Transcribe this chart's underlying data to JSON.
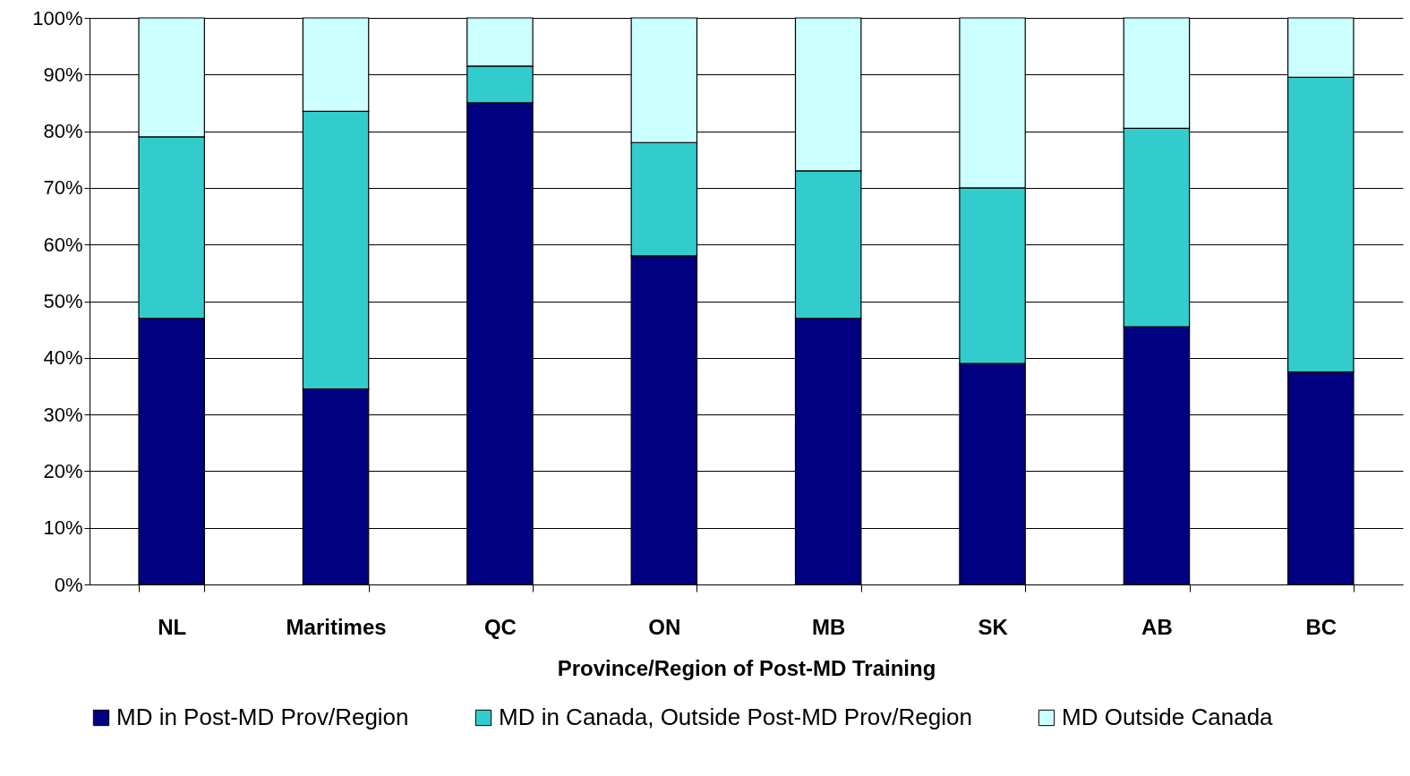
{
  "chart_data": {
    "type": "bar",
    "stacked": true,
    "xlabel": "Province/Region of Post-MD Training",
    "categories": [
      "NL",
      "Maritimes",
      "QC",
      "ON",
      "MB",
      "SK",
      "AB",
      "BC"
    ],
    "series": [
      {
        "name": "MD in Post-MD Prov/Region",
        "color": "#000080",
        "values": [
          47,
          34.5,
          85,
          58,
          47,
          39,
          45.5,
          37.5
        ]
      },
      {
        "name": "MD in Canada, Outside Post-MD Prov/Region",
        "color": "#33cccc",
        "values": [
          32,
          49,
          6.5,
          20,
          26,
          31,
          35,
          52
        ]
      },
      {
        "name": "MD Outside Canada",
        "color": "#ccffff",
        "values": [
          21,
          16.5,
          8.5,
          22,
          27,
          30,
          19.5,
          10.5
        ]
      }
    ],
    "ylim": [
      0,
      100
    ],
    "yticks": [
      {
        "value": 0,
        "label": "0%"
      },
      {
        "value": 10,
        "label": "10%"
      },
      {
        "value": 20,
        "label": "20%"
      },
      {
        "value": 30,
        "label": "30%"
      },
      {
        "value": 40,
        "label": "40%"
      },
      {
        "value": 50,
        "label": "50%"
      },
      {
        "value": 60,
        "label": "60%"
      },
      {
        "value": 70,
        "label": "70%"
      },
      {
        "value": 80,
        "label": "80%"
      },
      {
        "value": 90,
        "label": "90%"
      },
      {
        "value": 100,
        "label": "100%"
      }
    ],
    "grid": "y",
    "legend": "bottom"
  }
}
